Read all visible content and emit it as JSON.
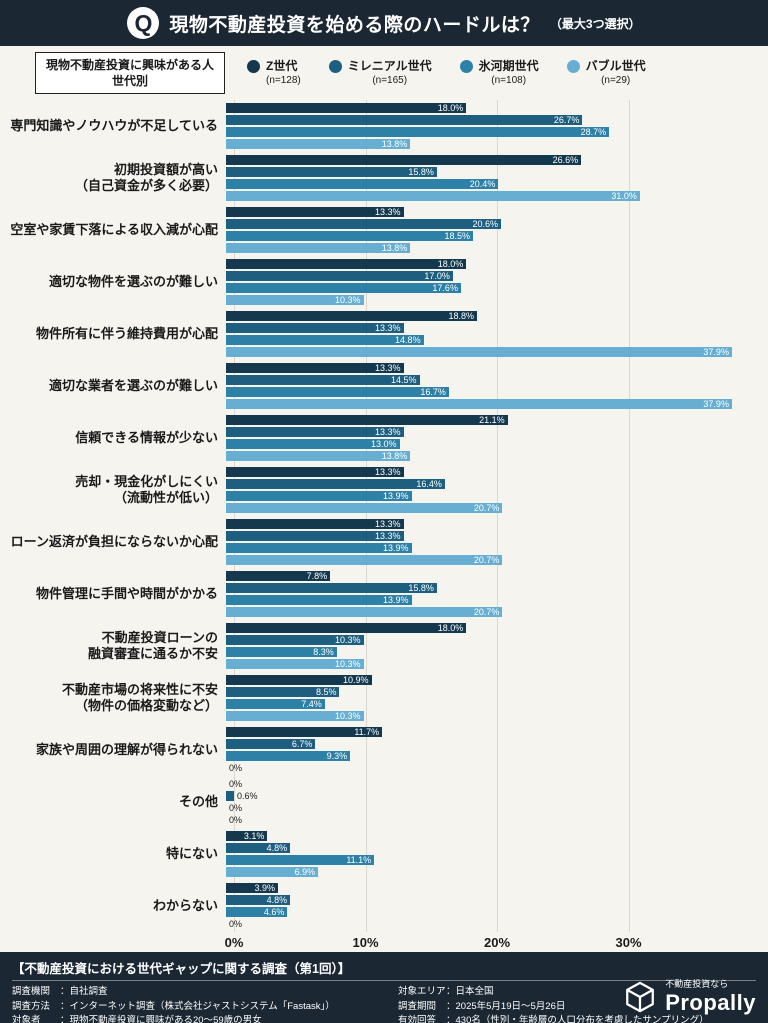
{
  "header": {
    "q": "Q",
    "title": "現物不動産投資を始める際のハードルは？",
    "subtitle": "（最大3つ選択）"
  },
  "legend": {
    "box_label_line1": "現物不動産投資に興味がある人",
    "box_label_line2": "世代別"
  },
  "chart_data": {
    "type": "bar",
    "orientation": "horizontal",
    "xlim": [
      0,
      40
    ],
    "ticks": [
      0,
      10,
      20,
      30
    ],
    "grid": "vertical",
    "legend_position": "top",
    "categories": [
      [
        "専門知識やノウハウが不足している"
      ],
      [
        "初期投資額が高い",
        "（自己資金が多く必要）"
      ],
      [
        "空室や家賃下落による収入減が心配"
      ],
      [
        "適切な物件を選ぶのが難しい"
      ],
      [
        "物件所有に伴う維持費用が心配"
      ],
      [
        "適切な業者を選ぶのが難しい"
      ],
      [
        "信頼できる情報が少ない"
      ],
      [
        "売却・現金化がしにくい",
        "（流動性が低い）"
      ],
      [
        "ローン返済が負担にならないか心配"
      ],
      [
        "物件管理に手間や時間がかかる"
      ],
      [
        "不動産投資ローンの",
        "融資審査に通るか不安"
      ],
      [
        "不動産市場の将来性に不安",
        "（物件の価格変動など）"
      ],
      [
        "家族や周囲の理解が得られない"
      ],
      [
        "その他"
      ],
      [
        "特にない"
      ],
      [
        "わからない"
      ]
    ],
    "series": [
      {
        "name": "Z世代",
        "n": "(n=128)",
        "color": "#14394e",
        "values": [
          18.0,
          26.6,
          13.3,
          18.0,
          18.8,
          13.3,
          21.1,
          13.3,
          13.3,
          7.8,
          18.0,
          10.9,
          11.7,
          0,
          3.1,
          3.9
        ]
      },
      {
        "name": "ミレニアル世代",
        "n": "(n=165)",
        "color": "#1e5f80",
        "values": [
          26.7,
          15.8,
          20.6,
          17.0,
          13.3,
          14.5,
          13.3,
          16.4,
          13.3,
          15.8,
          10.3,
          8.5,
          6.7,
          0.6,
          4.8,
          4.8
        ]
      },
      {
        "name": "氷河期世代",
        "n": "(n=108)",
        "color": "#2e81a6",
        "values": [
          28.7,
          20.4,
          18.5,
          17.6,
          14.8,
          16.7,
          13.0,
          13.9,
          13.9,
          13.9,
          8.3,
          7.4,
          9.3,
          0,
          11.1,
          4.6
        ]
      },
      {
        "name": "バブル世代",
        "n": "(n=29)",
        "color": "#66afd2",
        "values": [
          13.8,
          31.0,
          13.8,
          10.3,
          37.9,
          37.9,
          13.8,
          20.7,
          20.7,
          20.7,
          10.3,
          10.3,
          0,
          0,
          6.9,
          0
        ]
      }
    ]
  },
  "footer": {
    "title": "【不動産投資における世代ギャップに関する調査（第1回）】",
    "columns": [
      {
        "rows": [
          {
            "label": "調査機関",
            "value": "自社調査"
          },
          {
            "label": "調査方法",
            "value": "インターネット調査（株式会社ジャストシステム「Fastask」）"
          },
          {
            "label": "対象者",
            "value": "現物不動産投資に興味がある20～59歳の男女"
          }
        ]
      },
      {
        "rows": [
          {
            "label": "対象エリア",
            "value": "日本全国"
          },
          {
            "label": "調査期間",
            "value": "2025年5月19日～5月26日"
          },
          {
            "label": "有効回答",
            "value": "430名（性別・年齢層の人口分布を考慮したサンプリング）"
          }
        ]
      }
    ],
    "logo": {
      "tagline": "不動産投資なら",
      "brand": "Propally"
    }
  }
}
